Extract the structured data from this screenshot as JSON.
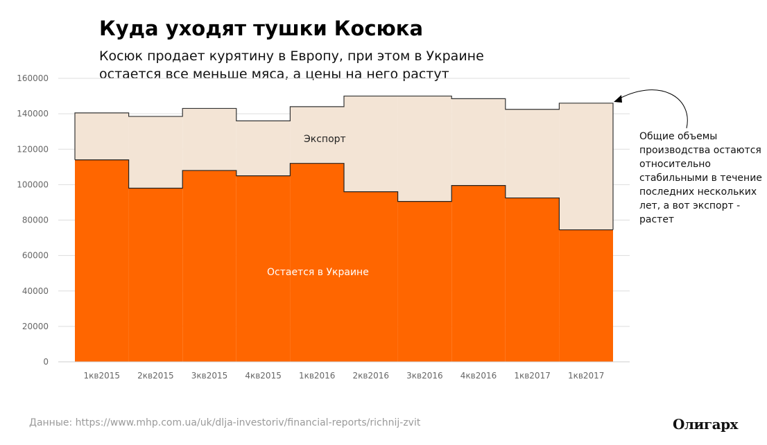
{
  "title": "Куда уходят тушки Косюка",
  "subtitle": "Косюк продает курятину в Европу, при этом в Украине остается все меньше мяса, а цены на него растут",
  "annotation": "Общие объемы производства остаются относительно стабильными в течение последних нескольких лет, а вот экспорт - растет",
  "source": "Данные: https://www.mhp.com.ua/uk/dlja-investoriv/financial-reports/richnij-zvit",
  "logo": "Олигарх",
  "chart_data": {
    "type": "area",
    "step": true,
    "categories": [
      "1кв2015",
      "2кв2015",
      "3кв2015",
      "4кв2015",
      "1кв2016",
      "2кв2016",
      "3кв2016",
      "4кв2016",
      "1кв2017",
      "1кв2017"
    ],
    "series": [
      {
        "name": "Остается в Украине",
        "color": "#ff6600",
        "values": [
          114000,
          98000,
          108000,
          105000,
          112000,
          96000,
          90500,
          99500,
          92500,
          74500
        ]
      },
      {
        "name": "Экспорт",
        "color": "#f3e4d5",
        "values": [
          26500,
          40500,
          35000,
          31000,
          32000,
          54000,
          59500,
          49000,
          50000,
          71500
        ]
      }
    ],
    "totals": [
      140500,
      138500,
      143000,
      136000,
      144000,
      150000,
      150000,
      148500,
      142500,
      146000
    ],
    "yticks": [
      0,
      20000,
      40000,
      60000,
      80000,
      100000,
      120000,
      140000,
      160000
    ],
    "ylim": [
      0,
      160000
    ],
    "grid": true,
    "labels": {
      "export": "Экспорт",
      "domestic": "Остается в Украине"
    }
  }
}
